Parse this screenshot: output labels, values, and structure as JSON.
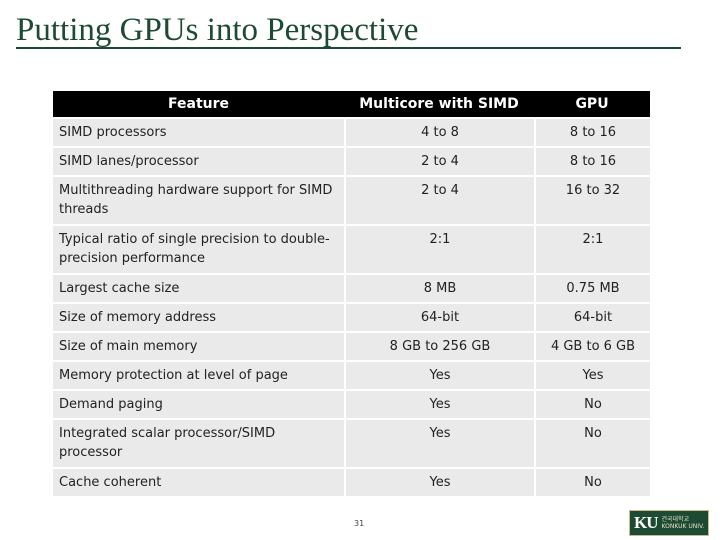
{
  "slide": {
    "title": "Putting GPUs into Perspective",
    "page_number": "31"
  },
  "table": {
    "headers": [
      "Feature",
      "Multicore with SIMD",
      "GPU"
    ],
    "rows": [
      {
        "feature": "SIMD processors",
        "multicore": "4 to 8",
        "gpu": "8 to 16"
      },
      {
        "feature": "SIMD lanes/processor",
        "multicore": "2 to 4",
        "gpu": "8 to 16"
      },
      {
        "feature": "Multithreading hardware support for SIMD threads",
        "multicore": "2 to 4",
        "gpu": "16 to 32"
      },
      {
        "feature": "Typical ratio of single precision to double-precision performance",
        "multicore": "2:1",
        "gpu": "2:1"
      },
      {
        "feature": "Largest cache size",
        "multicore": "8 MB",
        "gpu": "0.75 MB"
      },
      {
        "feature": "Size of memory address",
        "multicore": "64-bit",
        "gpu": "64-bit"
      },
      {
        "feature": "Size of main memory",
        "multicore": "8 GB to 256 GB",
        "gpu": "4 GB to 6 GB"
      },
      {
        "feature": "Memory protection at level of page",
        "multicore": "Yes",
        "gpu": "Yes"
      },
      {
        "feature": "Demand paging",
        "multicore": "Yes",
        "gpu": "No"
      },
      {
        "feature": "Integrated scalar processor/SIMD processor",
        "multicore": "Yes",
        "gpu": "No"
      },
      {
        "feature": "Cache coherent",
        "multicore": "Yes",
        "gpu": "No"
      }
    ]
  },
  "logo": {
    "mark": "KU",
    "sub_line1": "건국대학교",
    "sub_line2": "KONKUK UNIV."
  }
}
